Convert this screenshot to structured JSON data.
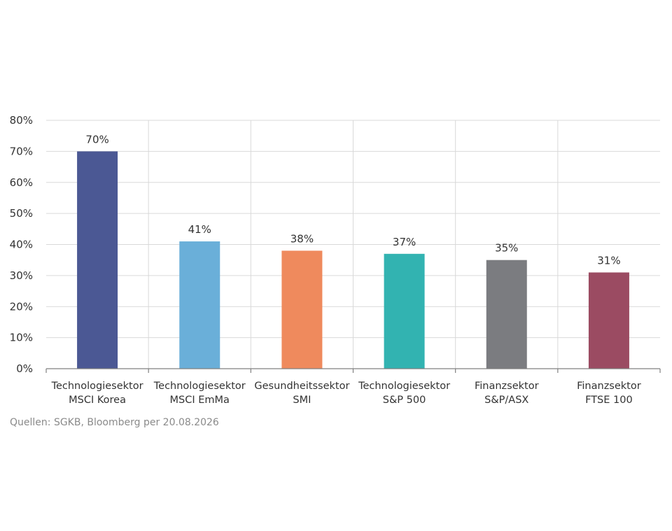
{
  "chart_data": {
    "type": "bar",
    "title": "",
    "xlabel": "",
    "ylabel": "",
    "ylim": [
      0,
      80
    ],
    "y_ticks": [
      "0%",
      "10%",
      "20%",
      "30%",
      "40%",
      "50%",
      "60%",
      "70%",
      "80%"
    ],
    "grid": true,
    "categories": [
      [
        "Technologiesektor",
        "MSCI Korea"
      ],
      [
        "Technologiesektor",
        "MSCI EmMa"
      ],
      [
        "Gesundheitssektor",
        "SMI"
      ],
      [
        "Technologiesektor",
        "S&P 500"
      ],
      [
        "Finanzsektor",
        "S&P/ASX"
      ],
      [
        "Finanzsektor",
        "FTSE 100"
      ]
    ],
    "values": [
      70,
      41,
      38,
      37,
      35,
      31
    ],
    "data_labels": [
      "70%",
      "41%",
      "38%",
      "37%",
      "35%",
      "31%"
    ],
    "colors": [
      "#4b5894",
      "#6aafd9",
      "#ef8a5d",
      "#32b3b1",
      "#7b7c80",
      "#9b4b62"
    ]
  },
  "source": "Quellen: SGKB, Bloomberg per 20.08.2026"
}
